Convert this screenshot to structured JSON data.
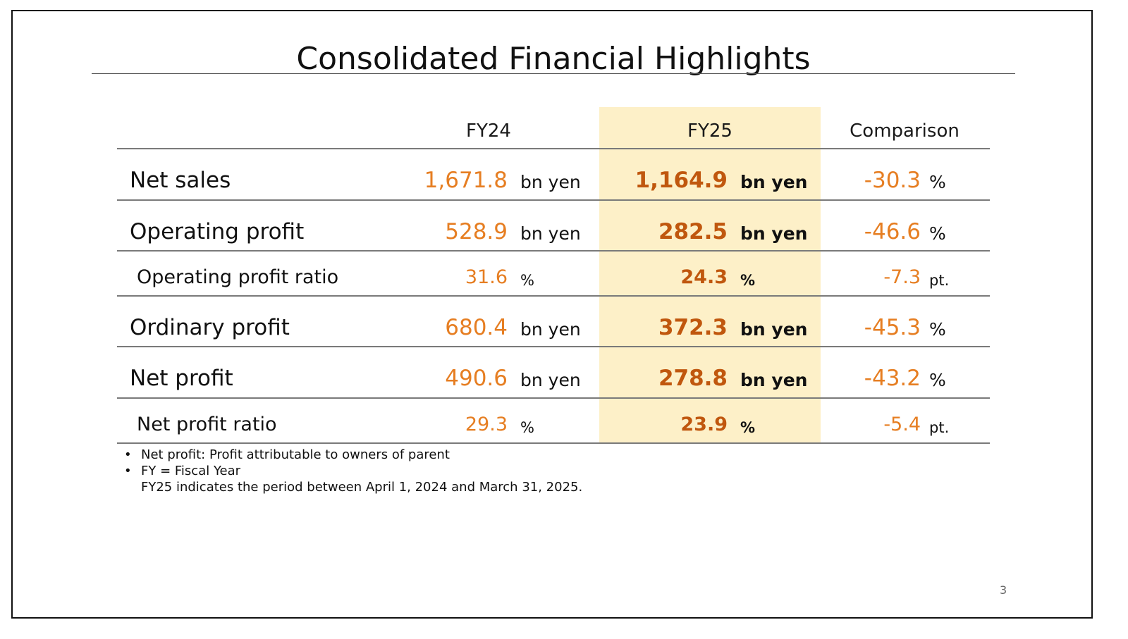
{
  "title": "Consolidated Financial Highlights",
  "columns": {
    "fy24": "FY24",
    "fy25": "FY25",
    "comparison": "Comparison"
  },
  "rows": [
    {
      "label": "Net sales",
      "fy24_value": "1,671.8",
      "fy24_unit": "bn yen",
      "fy25_value": "1,164.9",
      "fy25_unit": "bn yen",
      "comparison_value": "-30.3",
      "comparison_unit": "%"
    },
    {
      "label": "Operating profit",
      "fy24_value": "528.9",
      "fy24_unit": "bn yen",
      "fy25_value": "282.5",
      "fy25_unit": "bn yen",
      "comparison_value": "-46.6",
      "comparison_unit": "%"
    },
    {
      "label": "Operating profit ratio",
      "fy24_value": "31.6",
      "fy24_unit": "%",
      "fy25_value": "24.3",
      "fy25_unit": "%",
      "comparison_value": "-7.3",
      "comparison_unit": "pt."
    },
    {
      "label": "Ordinary profit",
      "fy24_value": "680.4",
      "fy24_unit": "bn yen",
      "fy25_value": "372.3",
      "fy25_unit": "bn yen",
      "comparison_value": "-45.3",
      "comparison_unit": "%"
    },
    {
      "label": "Net profit",
      "fy24_value": "490.6",
      "fy24_unit": "bn yen",
      "fy25_value": "278.8",
      "fy25_unit": "bn yen",
      "comparison_value": "-43.2",
      "comparison_unit": "%"
    },
    {
      "label": "Net profit ratio",
      "fy24_value": "29.3",
      "fy24_unit": "%",
      "fy25_value": "23.9",
      "fy25_unit": "%",
      "comparison_value": "-5.4",
      "comparison_unit": "pt."
    }
  ],
  "notes": {
    "bullet": "•",
    "items": [
      "Net profit: Profit attributable to owners of parent",
      "FY = Fiscal Year"
    ],
    "continuation": "FY25 indicates the period between April 1, 2024 and March 31, 2025."
  },
  "page_number": "3",
  "colors": {
    "fy24_value": "#e67e22",
    "fy25_value": "#c0570e",
    "fy25_highlight": "#fdf0c8"
  }
}
